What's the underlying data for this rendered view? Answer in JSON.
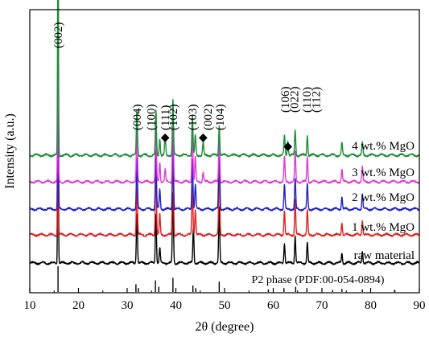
{
  "chart_data": {
    "type": "line",
    "xlabel": "2θ (degree)",
    "ylabel": "Intensity (a.u.)",
    "xlim": [
      10,
      90
    ],
    "xticks": [
      "10",
      "20",
      "30",
      "40",
      "50",
      "60",
      "70",
      "80",
      "90"
    ],
    "yticks_visible": false,
    "grid": false,
    "legend": "none",
    "series": [
      {
        "name": "raw material",
        "color": "#000000",
        "peaks": [
          {
            "x": 15.8,
            "h": 0.62
          },
          {
            "x": 32.0,
            "h": 0.2
          },
          {
            "x": 35.9,
            "h": 0.2
          },
          {
            "x": 36.7,
            "h": 0.06
          },
          {
            "x": 39.4,
            "h": 0.28
          },
          {
            "x": 43.6,
            "h": 0.14
          },
          {
            "x": 48.9,
            "h": 0.22
          },
          {
            "x": 62.3,
            "h": 0.08
          },
          {
            "x": 64.5,
            "h": 0.11
          },
          {
            "x": 67.0,
            "h": 0.08
          },
          {
            "x": 74.1,
            "h": 0.04
          },
          {
            "x": 78.3,
            "h": 0.05
          }
        ]
      },
      {
        "name": "1 wt.% MgO",
        "color": "#e0201f",
        "peaks": [
          {
            "x": 15.8,
            "h": 0.62
          },
          {
            "x": 32.0,
            "h": 0.22
          },
          {
            "x": 35.9,
            "h": 0.28
          },
          {
            "x": 36.7,
            "h": 0.08
          },
          {
            "x": 39.4,
            "h": 0.36
          },
          {
            "x": 43.4,
            "h": 0.2
          },
          {
            "x": 44.0,
            "h": 0.1
          },
          {
            "x": 48.9,
            "h": 0.28
          },
          {
            "x": 62.3,
            "h": 0.1
          },
          {
            "x": 64.5,
            "h": 0.14
          },
          {
            "x": 67.0,
            "h": 0.1
          },
          {
            "x": 74.1,
            "h": 0.05
          },
          {
            "x": 78.3,
            "h": 0.06
          }
        ]
      },
      {
        "name": "2 wt.% MgO",
        "color": "#1f22c8",
        "peaks": [
          {
            "x": 15.8,
            "h": 0.62
          },
          {
            "x": 32.0,
            "h": 0.2
          },
          {
            "x": 35.9,
            "h": 0.24
          },
          {
            "x": 36.7,
            "h": 0.08
          },
          {
            "x": 39.4,
            "h": 0.32
          },
          {
            "x": 43.4,
            "h": 0.2
          },
          {
            "x": 44.0,
            "h": 0.1
          },
          {
            "x": 48.9,
            "h": 0.3
          },
          {
            "x": 62.3,
            "h": 0.1
          },
          {
            "x": 64.5,
            "h": 0.12
          },
          {
            "x": 67.0,
            "h": 0.1
          },
          {
            "x": 74.1,
            "h": 0.05
          },
          {
            "x": 78.3,
            "h": 0.06
          }
        ]
      },
      {
        "name": "3 wt.% MgO",
        "color": "#e23ad6",
        "peaks": [
          {
            "x": 15.8,
            "h": 0.62
          },
          {
            "x": 32.0,
            "h": 0.22
          },
          {
            "x": 35.9,
            "h": 0.24
          },
          {
            "x": 36.7,
            "h": 0.08
          },
          {
            "x": 37.8,
            "h": 0.05
          },
          {
            "x": 39.4,
            "h": 0.3
          },
          {
            "x": 43.4,
            "h": 0.22
          },
          {
            "x": 44.0,
            "h": 0.1
          },
          {
            "x": 45.6,
            "h": 0.04
          },
          {
            "x": 48.9,
            "h": 0.2
          },
          {
            "x": 62.3,
            "h": 0.1
          },
          {
            "x": 64.5,
            "h": 0.12
          },
          {
            "x": 67.0,
            "h": 0.1
          },
          {
            "x": 74.1,
            "h": 0.05
          },
          {
            "x": 78.3,
            "h": 0.06
          }
        ]
      },
      {
        "name": "4 wt.% MgO",
        "color": "#1e8c38",
        "peaks": [
          {
            "x": 15.8,
            "h": 1.0
          },
          {
            "x": 32.0,
            "h": 0.18
          },
          {
            "x": 35.9,
            "h": 0.18
          },
          {
            "x": 36.7,
            "h": 0.07
          },
          {
            "x": 37.8,
            "h": 0.07
          },
          {
            "x": 39.4,
            "h": 0.22
          },
          {
            "x": 43.4,
            "h": 0.16
          },
          {
            "x": 44.0,
            "h": 0.08
          },
          {
            "x": 45.6,
            "h": 0.05
          },
          {
            "x": 48.9,
            "h": 0.12
          },
          {
            "x": 62.3,
            "h": 0.08
          },
          {
            "x": 63.0,
            "h": 0.06
          },
          {
            "x": 64.5,
            "h": 0.1
          },
          {
            "x": 67.0,
            "h": 0.08
          },
          {
            "x": 74.1,
            "h": 0.05
          },
          {
            "x": 78.3,
            "h": 0.05
          }
        ]
      }
    ],
    "series_labels": [
      "4 wt.% MgO",
      "3 wt.% MgO",
      "2 wt.% MgO",
      "1 wt.% MgO",
      "raw material"
    ],
    "reference": {
      "label": "P2 phase (PDF:00-054-0894)",
      "lines": [
        {
          "x": 15.8,
          "h": 1.0
        },
        {
          "x": 31.8,
          "h": 0.3
        },
        {
          "x": 32.3,
          "h": 0.15
        },
        {
          "x": 35.8,
          "h": 0.45
        },
        {
          "x": 36.5,
          "h": 0.2
        },
        {
          "x": 39.4,
          "h": 0.55
        },
        {
          "x": 43.5,
          "h": 0.25
        },
        {
          "x": 44.1,
          "h": 0.15
        },
        {
          "x": 48.9,
          "h": 0.4
        },
        {
          "x": 59.0,
          "h": 0.1
        },
        {
          "x": 62.2,
          "h": 0.15
        },
        {
          "x": 64.6,
          "h": 0.2
        },
        {
          "x": 66.9,
          "h": 0.15
        },
        {
          "x": 72.2,
          "h": 0.08
        },
        {
          "x": 74.1,
          "h": 0.12
        },
        {
          "x": 78.3,
          "h": 0.1
        },
        {
          "x": 84.9,
          "h": 0.08
        }
      ]
    },
    "annotations": [
      {
        "text": "(002)",
        "x": 15.8
      },
      {
        "text": "(004)",
        "x": 32.0
      },
      {
        "text": "(100)",
        "x": 34.9
      },
      {
        "text": "(111)",
        "x": 37.8
      },
      {
        "text": "(102)",
        "x": 39.4
      },
      {
        "text": "(103)",
        "x": 43.4
      },
      {
        "text": "(002)",
        "x": 46.5
      },
      {
        "text": "(104)",
        "x": 49.0
      },
      {
        "text": "(106)",
        "x": 62.4
      },
      {
        "text": "(022)",
        "x": 64.3
      },
      {
        "text": "(110)",
        "x": 66.9
      },
      {
        "text": "(112)",
        "x": 68.8
      }
    ],
    "impurity_markers": [
      {
        "symbol": "◆",
        "x": 37.8
      },
      {
        "symbol": "◆",
        "x": 45.6
      },
      {
        "symbol": "◆",
        "x": 63.0
      }
    ]
  }
}
